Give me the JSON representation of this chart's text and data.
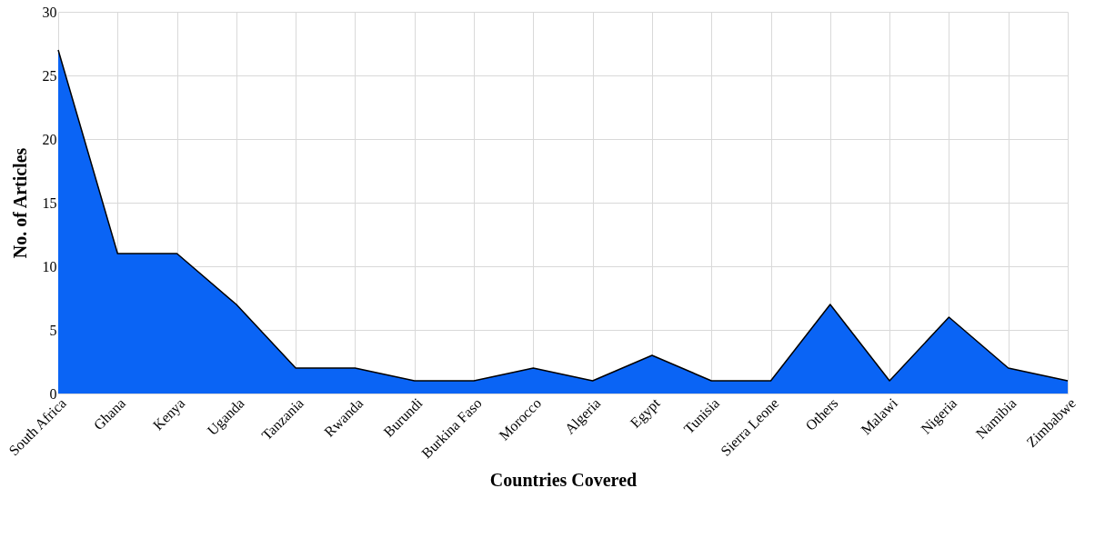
{
  "chart_data": {
    "type": "area",
    "xlabel": "Countries Covered",
    "ylabel": "No. of Articles",
    "categories": [
      "South Africa",
      "Ghana",
      "Kenya",
      "Uganda",
      "Tanzania",
      "Rwanda",
      "Burundi",
      "Burkina Faso",
      "Morocco",
      "Algeria",
      "Egypt",
      "Tunisia",
      "Sierra Leone",
      "Others",
      "Malawi",
      "Nigeria",
      "Namibia",
      "Zimbabwe"
    ],
    "series": [
      {
        "color": "#0a64f5",
        "values": [
          27,
          11,
          11,
          7,
          2,
          2,
          1,
          1,
          2,
          1,
          3,
          1,
          1,
          7,
          1,
          6,
          2,
          1
        ]
      }
    ],
    "ylim": [
      0,
      30
    ],
    "yticks": [
      0,
      5,
      10,
      15,
      20,
      25,
      30
    ],
    "grid": true
  }
}
